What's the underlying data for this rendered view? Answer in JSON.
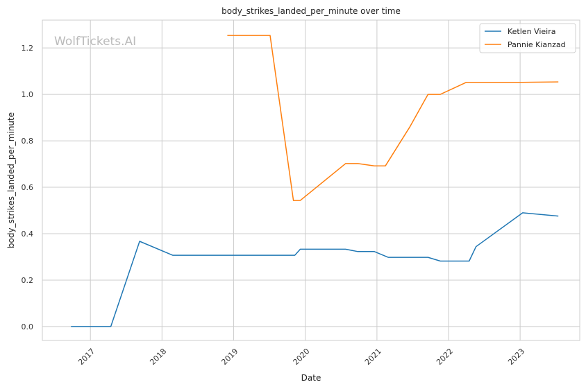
{
  "chart_data": {
    "type": "line",
    "title": "body_strikes_landed_per_minute over time",
    "xlabel": "Date",
    "ylabel": "body_strikes_landed_per_minute",
    "watermark": "WolfTickets.AI",
    "x_ticks": [
      "2017",
      "2018",
      "2019",
      "2020",
      "2021",
      "2022",
      "2023"
    ],
    "y_ticks": [
      "0.0",
      "0.2",
      "0.4",
      "0.6",
      "0.8",
      "1.0",
      "1.2"
    ],
    "xlim": [
      "2016-05-01",
      "2023-11-01"
    ],
    "ylim": [
      -0.06,
      1.32
    ],
    "grid": true,
    "legend_position": "top-right",
    "series": [
      {
        "name": "Ketlen Vieira",
        "color": "#1f77b4",
        "points": [
          [
            "2016-09-24",
            0.0
          ],
          [
            "2017-04-15",
            0.0
          ],
          [
            "2017-09-09",
            0.367
          ],
          [
            "2018-02-24",
            0.307
          ],
          [
            "2019-11-09",
            0.307
          ],
          [
            "2019-12-07",
            0.333
          ],
          [
            "2020-07-25",
            0.333
          ],
          [
            "2020-09-26",
            0.323
          ],
          [
            "2020-12-19",
            0.323
          ],
          [
            "2021-02-27",
            0.298
          ],
          [
            "2021-09-18",
            0.298
          ],
          [
            "2021-11-20",
            0.282
          ],
          [
            "2022-04-16",
            0.282
          ],
          [
            "2022-05-21",
            0.344
          ],
          [
            "2023-01-14",
            0.49
          ],
          [
            "2023-07-15",
            0.476
          ]
        ]
      },
      {
        "name": "Pannie Kianzad",
        "color": "#ff7f0e",
        "points": [
          [
            "2018-11-30",
            1.254
          ],
          [
            "2019-07-06",
            1.254
          ],
          [
            "2019-11-02",
            0.543
          ],
          [
            "2019-12-07",
            0.543
          ],
          [
            "2020-07-25",
            0.702
          ],
          [
            "2020-09-26",
            0.702
          ],
          [
            "2020-12-19",
            0.692
          ],
          [
            "2021-02-13",
            0.692
          ],
          [
            "2021-06-19",
            0.862
          ],
          [
            "2021-09-18",
            1.0
          ],
          [
            "2021-11-20",
            1.0
          ],
          [
            "2022-04-02",
            1.052
          ],
          [
            "2023-01-14",
            1.052
          ],
          [
            "2023-07-15",
            1.054
          ]
        ]
      }
    ]
  }
}
